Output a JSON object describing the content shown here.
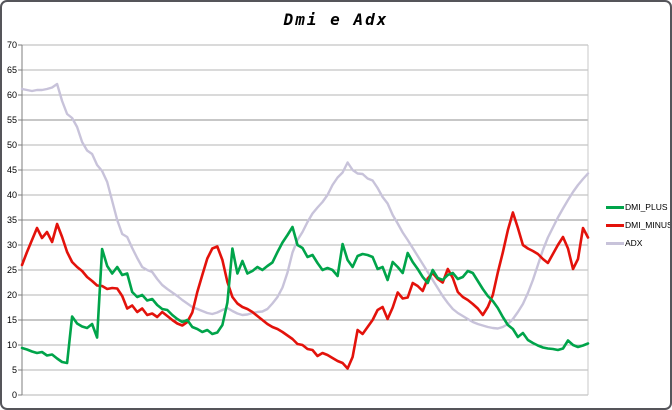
{
  "window": {
    "title_label": "Dmi e Adx"
  },
  "colors": {
    "background": "#ffffff",
    "window_border": "#55555a",
    "gridline": "#b5b5b5",
    "gridline_dark": "#8f8f8f",
    "axis": "#7f7f7f",
    "plot_right_border": "#c8c8c8"
  },
  "chart_data": {
    "type": "line",
    "title": "Dmi e Adx",
    "xlabel": "",
    "ylabel": "",
    "x": "unlabeled sequence of 114 periods (no x-axis tick labels shown)",
    "ylim": [
      0,
      70
    ],
    "ytick_step": 5,
    "grid": "horizontal",
    "legend_position": "right",
    "series": [
      {
        "name": "DMI_PLUS",
        "color": "#00a44a",
        "values": [
          9.4,
          9.1,
          8.7,
          8.4,
          8.6,
          7.9,
          8.1,
          7.3,
          6.6,
          6.4,
          15.7,
          14.3,
          13.7,
          13.4,
          14.2,
          11.5,
          29.2,
          25.8,
          24.3,
          25.6,
          24.0,
          24.3,
          20.6,
          19.6,
          20.0,
          18.9,
          19.2,
          18.0,
          17.2,
          17.0,
          16.0,
          15.2,
          14.6,
          15.0,
          13.6,
          13.2,
          12.6,
          13.0,
          12.2,
          12.5,
          14.0,
          18.5,
          29.3,
          24.3,
          26.8,
          24.3,
          24.8,
          25.6,
          25.0,
          25.8,
          26.5,
          28.6,
          30.5,
          32.0,
          33.6,
          30.0,
          29.4,
          27.6,
          28.0,
          26.4,
          25.0,
          25.4,
          25.0,
          23.8,
          30.2,
          27.0,
          25.6,
          27.8,
          28.2,
          28.0,
          27.6,
          25.2,
          25.6,
          23.0,
          26.6,
          25.6,
          24.4,
          28.4,
          26.6,
          25.2,
          23.6,
          22.4,
          25.0,
          23.4,
          23.0,
          24.0,
          24.4,
          23.2,
          23.6,
          24.8,
          24.4,
          22.8,
          21.2,
          19.8,
          18.8,
          17.4,
          15.6,
          14.0,
          13.2,
          11.6,
          12.4,
          11.0,
          10.4,
          9.9,
          9.5,
          9.3,
          9.2,
          9.0,
          9.3,
          10.9,
          10.0,
          9.6,
          9.9,
          10.3
        ]
      },
      {
        "name": "DMI_MINUS",
        "color": "#e3120b",
        "values": [
          26.0,
          28.6,
          31.0,
          33.4,
          31.4,
          32.6,
          30.6,
          34.2,
          31.6,
          28.6,
          26.6,
          25.6,
          24.8,
          23.6,
          22.8,
          21.9,
          21.8,
          21.2,
          21.4,
          21.3,
          19.8,
          17.3,
          17.9,
          16.6,
          17.3,
          16.0,
          16.3,
          15.6,
          16.6,
          15.8,
          15.0,
          14.3,
          13.9,
          14.6,
          16.5,
          20.6,
          24.0,
          27.3,
          29.3,
          29.7,
          27.0,
          22.6,
          19.6,
          18.3,
          17.6,
          17.2,
          16.6,
          15.8,
          15.0,
          14.2,
          13.6,
          13.2,
          12.6,
          11.9,
          11.2,
          10.2,
          10.0,
          9.2,
          9.0,
          7.8,
          8.4,
          8.0,
          7.4,
          6.8,
          6.4,
          5.3,
          7.6,
          13.0,
          12.2,
          13.6,
          15.0,
          17.0,
          17.6,
          15.2,
          17.5,
          20.5,
          19.3,
          19.5,
          22.4,
          21.8,
          20.8,
          23.3,
          24.4,
          23.2,
          22.5,
          25.2,
          23.4,
          20.6,
          19.6,
          19.0,
          18.2,
          17.3,
          16.0,
          17.6,
          20.0,
          24.5,
          28.5,
          33.0,
          36.5,
          33.4,
          30.0,
          29.3,
          28.8,
          28.2,
          27.2,
          26.4,
          28.2,
          30.0,
          31.6,
          29.3,
          25.2,
          27.2,
          33.4,
          31.5
        ]
      },
      {
        "name": "ADX",
        "color": "#c8c3da",
        "values": [
          61.2,
          61.0,
          60.8,
          61.0,
          61.0,
          61.2,
          61.5,
          62.2,
          58.8,
          56.2,
          55.4,
          53.6,
          50.6,
          48.9,
          48.2,
          46.0,
          44.8,
          42.6,
          38.8,
          35.0,
          32.2,
          31.6,
          29.4,
          27.4,
          25.6,
          25.0,
          24.6,
          23.2,
          22.0,
          21.2,
          20.5,
          19.8,
          19.0,
          18.3,
          17.6,
          17.2,
          16.8,
          16.4,
          16.2,
          16.5,
          17.0,
          17.4,
          16.8,
          16.3,
          16.0,
          16.1,
          16.4,
          16.6,
          16.7,
          17.2,
          18.3,
          19.6,
          21.5,
          24.5,
          28.5,
          31.0,
          32.6,
          34.6,
          36.3,
          37.5,
          38.6,
          40.0,
          42.0,
          43.5,
          44.5,
          46.5,
          45.0,
          44.3,
          44.2,
          43.3,
          42.9,
          41.4,
          39.6,
          38.3,
          36.0,
          34.3,
          32.5,
          31.0,
          29.4,
          27.8,
          26.2,
          24.6,
          23.0,
          21.4,
          19.8,
          18.4,
          17.2,
          16.4,
          15.8,
          15.2,
          14.6,
          14.2,
          13.9,
          13.6,
          13.4,
          13.3,
          13.6,
          14.2,
          15.2,
          16.6,
          18.2,
          20.4,
          23.0,
          26.0,
          29.0,
          31.5,
          33.5,
          35.5,
          37.3,
          39.0,
          40.6,
          42.0,
          43.2,
          44.3
        ]
      }
    ]
  }
}
